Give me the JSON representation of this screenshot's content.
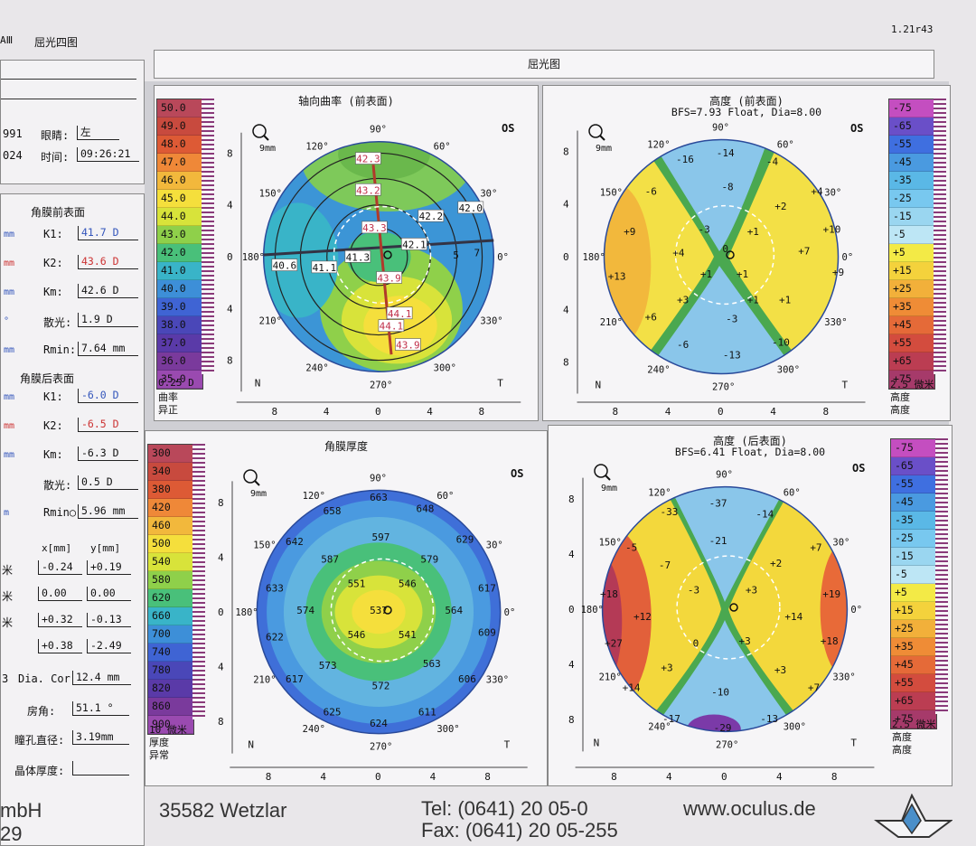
{
  "header": {
    "left_title": "屈光四图",
    "left_prefix": "AⅢ",
    "version": "1.21r43",
    "main_title": "屈光图"
  },
  "patient": {
    "dob_partial": "991",
    "eye_label": "眼睛:",
    "eye_value": "左",
    "date_partial": "024",
    "time_label": "时间:",
    "time_value": "09:26:21"
  },
  "anterior": {
    "title": "角膜前表面",
    "rows": [
      {
        "left": "mm",
        "label": "K1:",
        "value": "41.7 D"
      },
      {
        "left": "mm",
        "label": "K2:",
        "value": "43.6 D"
      },
      {
        "left": "mm",
        "label": "Km:",
        "value": "42.6 D"
      },
      {
        "left": "°",
        "label": "散光:",
        "value": "1.9 D"
      },
      {
        "left": "mm",
        "label": "Rmin:",
        "value": "7.64 mm"
      }
    ]
  },
  "posterior": {
    "title": "角膜后表面",
    "rows": [
      {
        "left": "mm",
        "label": "K1:",
        "value": "-6.0 D"
      },
      {
        "left": "mm",
        "label": "K2:",
        "value": "-6.5 D"
      },
      {
        "left": "mm",
        "label": "Km:",
        "value": "-6.3 D"
      },
      {
        "left": "",
        "label": "散光:",
        "value": "0.5 D"
      },
      {
        "left": "m",
        "label": "Rmin○",
        "value": "5.96 mm"
      }
    ]
  },
  "positions": {
    "col_x": "x[mm]",
    "col_y": "y[mm]",
    "rows": [
      {
        "left": "米",
        "x": "-0.24",
        "y": "+0.19"
      },
      {
        "left": "米",
        "x": "0.00",
        "y": "0.00"
      },
      {
        "left": "米",
        "x": "+0.32",
        "y": "-0.13"
      },
      {
        "left": "",
        "x": "+0.38",
        "y": "-2.49"
      }
    ]
  },
  "misc": {
    "dia_prefix": "3",
    "dia_label": "Dia. Cor",
    "dia_value": "12.4 mm",
    "angle_label": "房角:",
    "angle_value": "51.1 °",
    "pupil_label": "瞳孔直径:",
    "pupil_value": "3.19mm",
    "lens_label": "晶体厚度:",
    "lens_value": ""
  },
  "maps": {
    "axial": {
      "title": "轴向曲率 (前表面)",
      "eye": "OS",
      "zoom": "9mm",
      "scale": [
        "50.0",
        "49.0",
        "48.0",
        "47.0",
        "46.0",
        "45.0",
        "44.0",
        "43.0",
        "42.0",
        "41.0",
        "40.0",
        "39.0",
        "38.0",
        "37.0",
        "36.0",
        "35.0"
      ],
      "scale_footer": [
        "0.25 D",
        "曲率",
        "异正"
      ],
      "labels": [
        "42.3",
        "43.2",
        "43.3",
        "42.2",
        "42.0",
        "42.1",
        "41.3",
        "41.1",
        "40.6",
        "43.9",
        "44.1",
        "44.1",
        "43.9",
        "5",
        "7"
      ]
    },
    "elev_front": {
      "title": "高度 (前表面)",
      "subtitle": "BFS=7.93 Float, Dia=8.00",
      "eye": "OS",
      "zoom": "9mm",
      "scale": [
        "-75",
        "-65",
        "-55",
        "-45",
        "-35",
        "-25",
        "-15",
        "-5",
        "+5",
        "+15",
        "+25",
        "+35",
        "+45",
        "+55",
        "+65",
        "+75"
      ],
      "scale_footer": [
        "2.5 微米",
        "高度",
        "高度"
      ],
      "labels": [
        "-16",
        "-14",
        "-4",
        "-6",
        "-8",
        "+4",
        "-3",
        "+2",
        "+1",
        "+9",
        "+4",
        "+10",
        "+7",
        "+13",
        "+1",
        "+1",
        "+9",
        "+3",
        "+1",
        "+1",
        "+6",
        "-3",
        "-6",
        "-13",
        "-10",
        "0"
      ]
    },
    "pachy": {
      "title": "角膜厚度",
      "eye": "OS",
      "zoom": "9mm",
      "scale": [
        "300",
        "340",
        "380",
        "420",
        "460",
        "500",
        "540",
        "580",
        "620",
        "660",
        "700",
        "740",
        "780",
        "820",
        "860",
        "900"
      ],
      "scale_footer": [
        "10 微米",
        "厚度",
        "异常"
      ],
      "labels": [
        "663",
        "658",
        "648",
        "642",
        "597",
        "629",
        "587",
        "579",
        "633",
        "551",
        "546",
        "617",
        "574",
        "537",
        "564",
        "622",
        "546",
        "541",
        "609",
        "573",
        "563",
        "617",
        "572",
        "606",
        "625",
        "624",
        "611"
      ]
    },
    "elev_back": {
      "title": "高度 (后表面)",
      "subtitle": "BFS=6.41 Float, Dia=8.00",
      "eye": "OS",
      "zoom": "9mm",
      "scale": [
        "-75",
        "-65",
        "-55",
        "-45",
        "-35",
        "-25",
        "-15",
        "-5",
        "+5",
        "+15",
        "+25",
        "+35",
        "+45",
        "+55",
        "+65",
        "+75"
      ],
      "scale_footer": [
        "2.5 微米",
        "高度",
        "高度"
      ],
      "labels": [
        "-33",
        "-37",
        "-14",
        "-21",
        "-5",
        "+7",
        "-7",
        "+2",
        "+18",
        "-3",
        "+3",
        "+19",
        "+12",
        "+14",
        "+27",
        "0",
        "+3",
        "+18",
        "+3",
        "+3",
        "+14",
        "-10",
        "+7",
        "-17",
        "-29",
        "-13"
      ]
    }
  },
  "axis": {
    "deg": [
      "90°",
      "60°",
      "30°",
      "0°",
      "330°",
      "300°",
      "270°",
      "240°",
      "210°",
      "180°",
      "150°",
      "120°"
    ],
    "ticks": [
      "8",
      "4",
      "0",
      "4",
      "8"
    ],
    "N": "N",
    "T": "T"
  },
  "footer": {
    "company": "mbH",
    "left2": "29",
    "city": "35582 Wetzlar",
    "tel": "Tel:  (0641) 20 05-0",
    "fax": "Fax: (0641) 20 05-255",
    "web": "www.oculus.de"
  }
}
